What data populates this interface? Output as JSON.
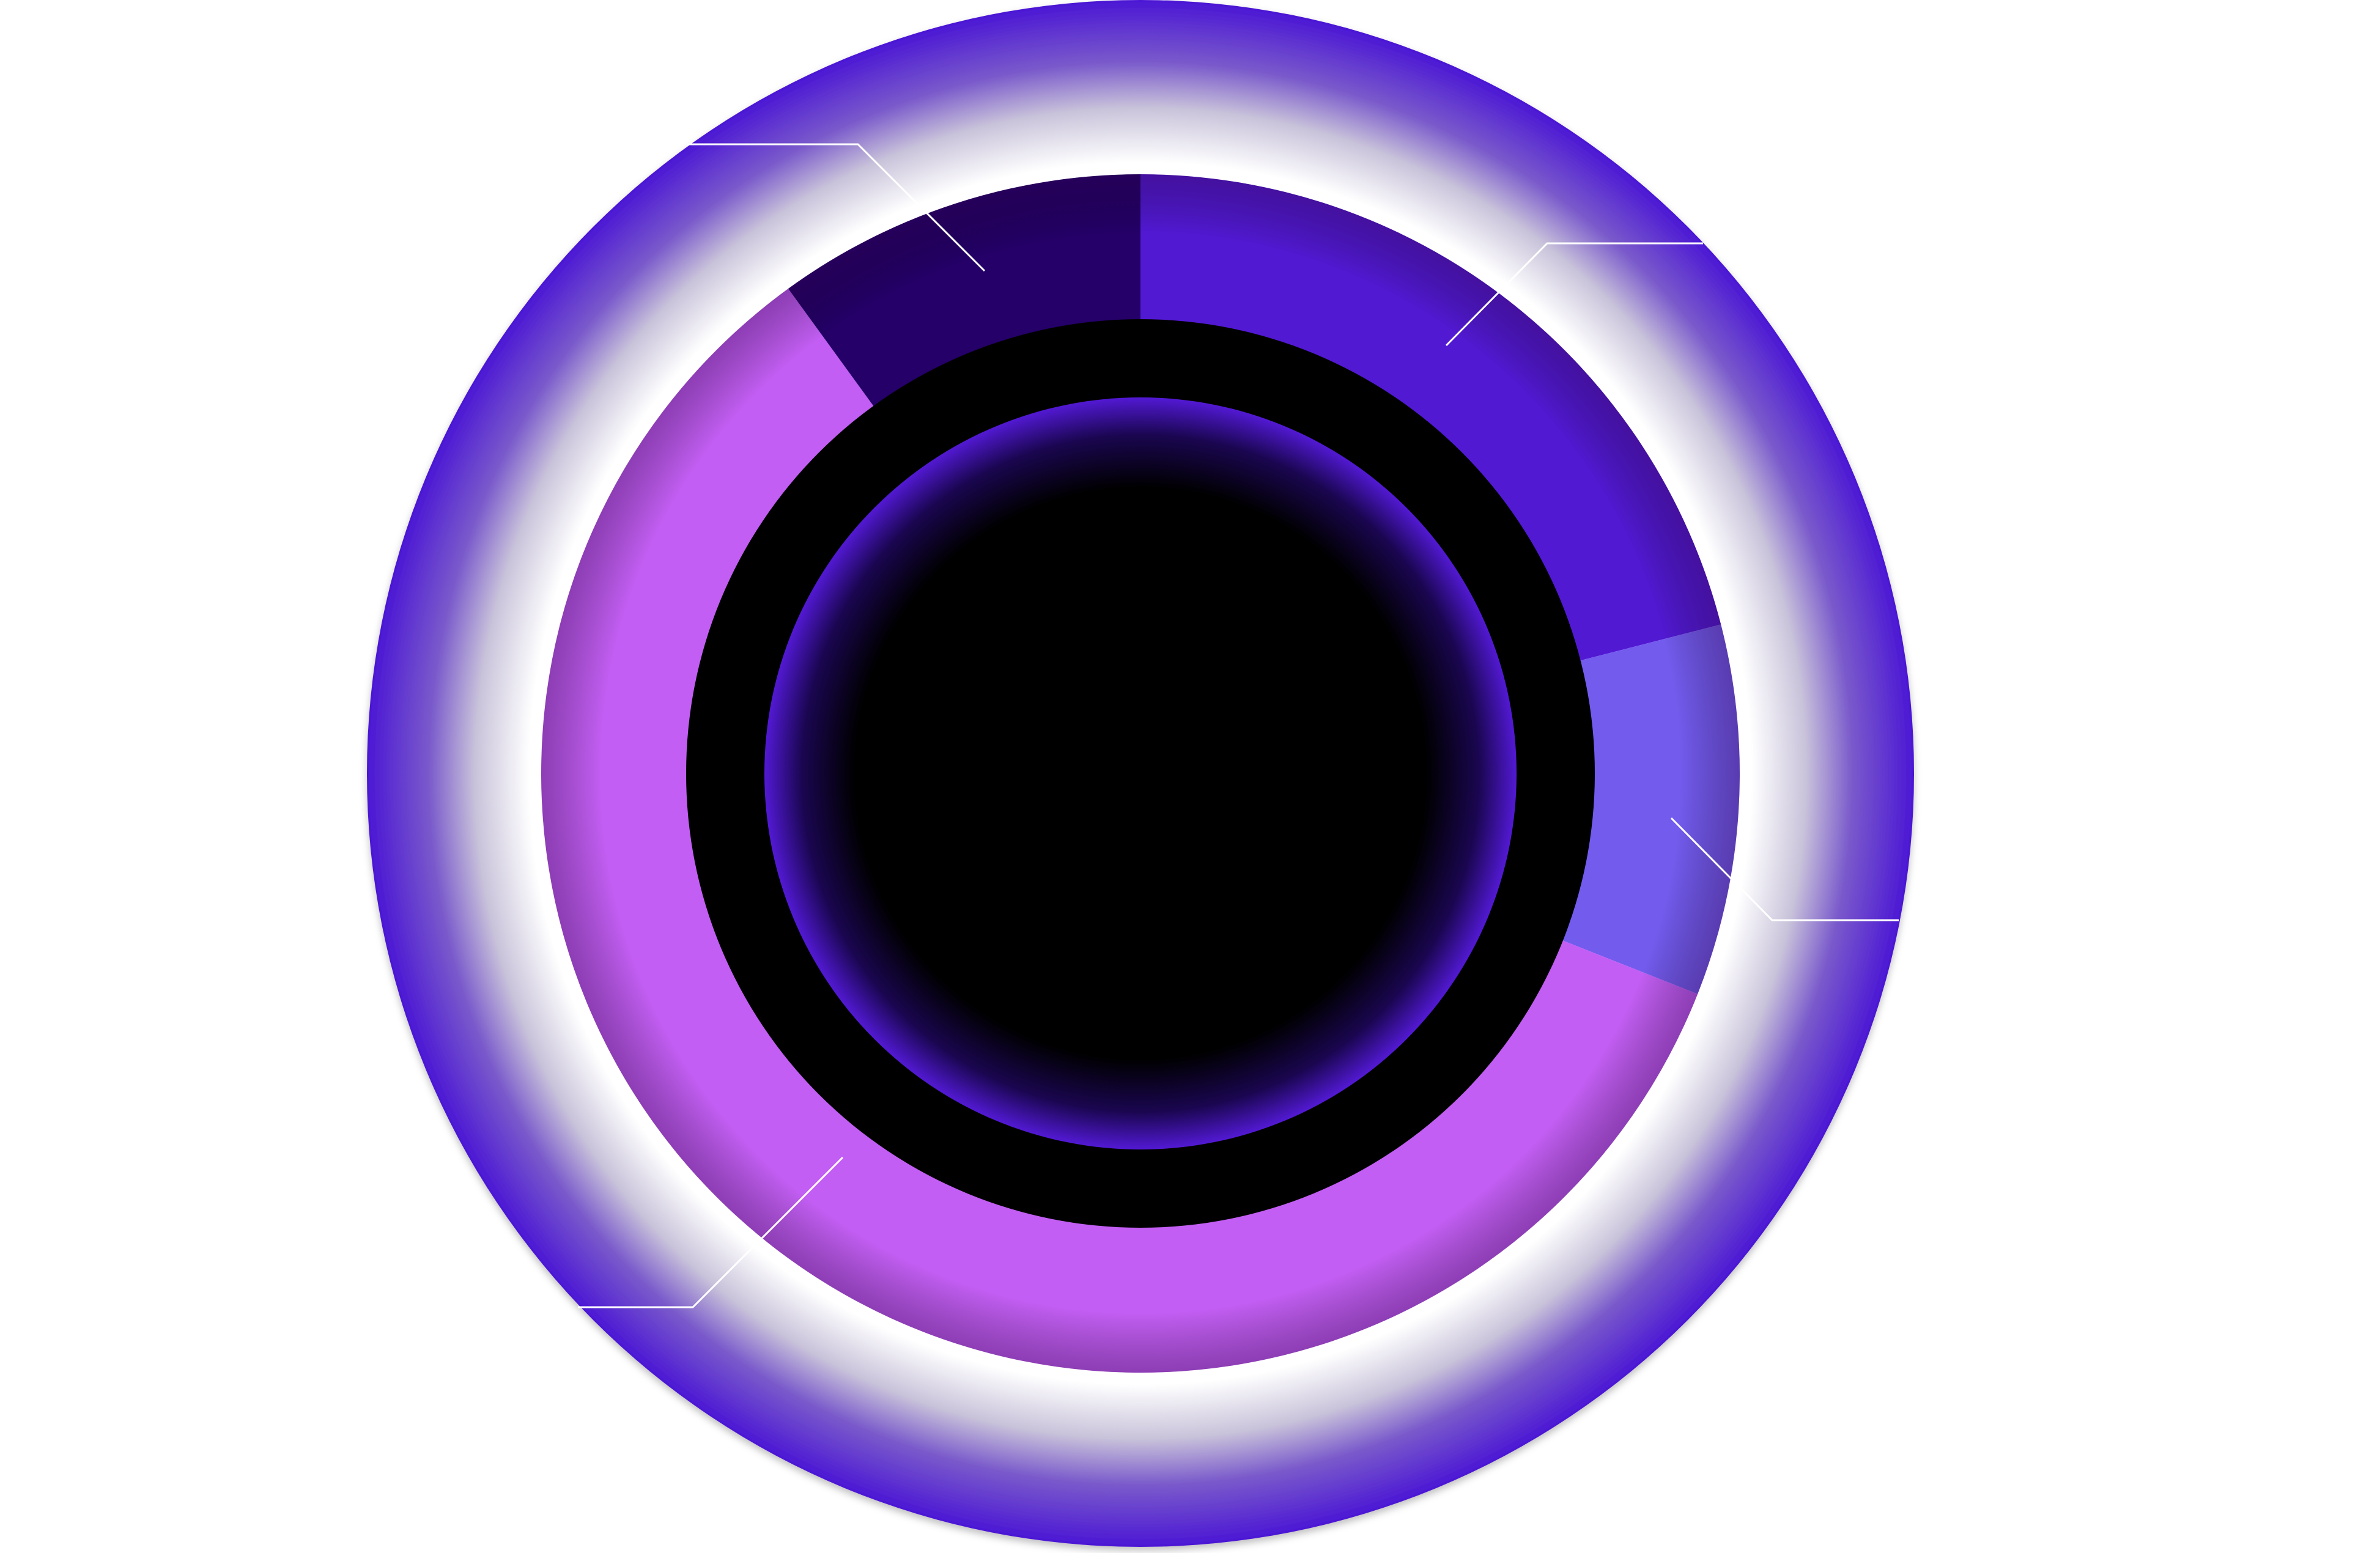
{
  "chart_data": {
    "type": "pie",
    "variant": "donut",
    "title": "",
    "categories": [
      "",
      "",
      "",
      ""
    ],
    "values": [
      21,
      10,
      59,
      10
    ],
    "colors": [
      "#5219d3",
      "#735bee",
      "#c35ef4",
      "#240068"
    ],
    "start_angle_deg": 0,
    "direction": "clockwise",
    "legend": "none",
    "leader_lines": true
  },
  "colors": {
    "outer_ring": "#4b17d4",
    "outer_ring_inner_glow": "#ffffff",
    "center_disc": "#000000",
    "center_glow": "#5219d3",
    "leader_line": "#ffffff",
    "background": "#ffffff"
  }
}
